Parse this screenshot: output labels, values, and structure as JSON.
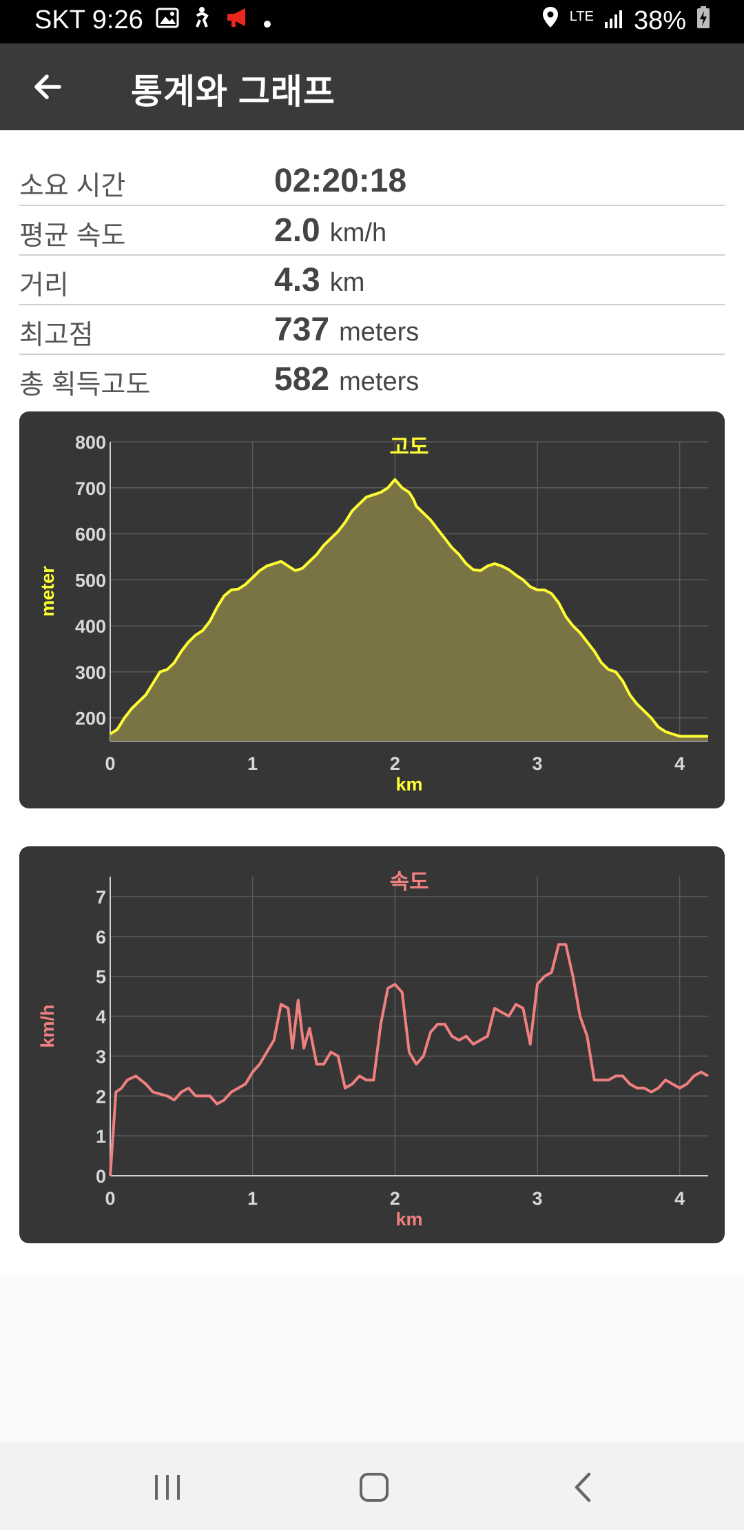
{
  "status_bar": {
    "carrier_time": "SKT 9:26",
    "network": "LTE",
    "battery": "38%"
  },
  "app_bar": {
    "title": "통계와 그래프"
  },
  "stats": [
    {
      "label": "소요 시간",
      "value": "02:20:18",
      "unit": ""
    },
    {
      "label": "평균 속도",
      "value": "2.0",
      "unit": "km/h"
    },
    {
      "label": "거리",
      "value": "4.3",
      "unit": "km"
    },
    {
      "label": "최고점",
      "value": "737",
      "unit": "meters"
    },
    {
      "label": "총 획득고도",
      "value": "582",
      "unit": "meters"
    }
  ],
  "colors": {
    "elevation_line": "#ffff33",
    "elevation_fill": "#7a7444",
    "speed_line": "#f08080",
    "panel_bg": "#363636"
  },
  "chart_data": [
    {
      "type": "area",
      "title": "고도",
      "xlabel": "km",
      "ylabel": "meter",
      "xlim": [
        0,
        4.2
      ],
      "ylim": [
        150,
        800
      ],
      "x_ticks": [
        0,
        1,
        2,
        3,
        4
      ],
      "y_ticks": [
        200,
        300,
        400,
        500,
        600,
        700,
        800
      ],
      "grid": true,
      "x": [
        0,
        0.05,
        0.1,
        0.15,
        0.2,
        0.25,
        0.3,
        0.35,
        0.4,
        0.45,
        0.5,
        0.55,
        0.6,
        0.65,
        0.7,
        0.75,
        0.8,
        0.85,
        0.9,
        0.95,
        1.0,
        1.05,
        1.1,
        1.15,
        1.2,
        1.25,
        1.3,
        1.35,
        1.4,
        1.45,
        1.5,
        1.55,
        1.6,
        1.65,
        1.7,
        1.75,
        1.8,
        1.85,
        1.9,
        1.95,
        2.0,
        2.05,
        2.1,
        2.13,
        2.15,
        2.2,
        2.25,
        2.3,
        2.35,
        2.4,
        2.45,
        2.5,
        2.55,
        2.6,
        2.65,
        2.7,
        2.75,
        2.8,
        2.85,
        2.9,
        2.95,
        3.0,
        3.05,
        3.1,
        3.15,
        3.2,
        3.25,
        3.3,
        3.35,
        3.4,
        3.45,
        3.5,
        3.55,
        3.6,
        3.65,
        3.7,
        3.75,
        3.8,
        3.85,
        3.9,
        3.95,
        4.0,
        4.05,
        4.1,
        4.15,
        4.2
      ],
      "values": [
        165,
        175,
        200,
        220,
        235,
        250,
        275,
        300,
        305,
        320,
        345,
        365,
        380,
        390,
        410,
        440,
        465,
        478,
        480,
        490,
        505,
        520,
        530,
        535,
        540,
        530,
        520,
        525,
        540,
        555,
        575,
        590,
        605,
        625,
        650,
        665,
        680,
        685,
        690,
        700,
        718,
        700,
        690,
        675,
        660,
        645,
        630,
        610,
        590,
        570,
        555,
        535,
        522,
        520,
        530,
        535,
        530,
        522,
        510,
        500,
        485,
        478,
        478,
        470,
        450,
        420,
        400,
        385,
        365,
        345,
        320,
        305,
        300,
        280,
        250,
        230,
        215,
        200,
        180,
        170,
        165,
        160,
        160,
        160,
        160,
        160
      ]
    },
    {
      "type": "line",
      "title": "속도",
      "xlabel": "km",
      "ylabel": "km/h",
      "xlim": [
        0,
        4.2
      ],
      "ylim": [
        0,
        7.5
      ],
      "x_ticks": [
        0,
        1,
        2,
        3,
        4
      ],
      "y_ticks": [
        0,
        1,
        2,
        3,
        4,
        5,
        6,
        7
      ],
      "grid": true,
      "x": [
        0,
        0.04,
        0.08,
        0.12,
        0.18,
        0.25,
        0.3,
        0.4,
        0.45,
        0.5,
        0.55,
        0.6,
        0.65,
        0.7,
        0.75,
        0.8,
        0.85,
        0.9,
        0.95,
        1.0,
        1.05,
        1.1,
        1.15,
        1.2,
        1.25,
        1.28,
        1.32,
        1.36,
        1.4,
        1.45,
        1.5,
        1.55,
        1.6,
        1.65,
        1.7,
        1.75,
        1.8,
        1.85,
        1.9,
        1.95,
        2.0,
        2.05,
        2.1,
        2.15,
        2.2,
        2.25,
        2.3,
        2.35,
        2.4,
        2.45,
        2.5,
        2.55,
        2.6,
        2.65,
        2.7,
        2.75,
        2.8,
        2.85,
        2.9,
        2.95,
        3.0,
        3.05,
        3.1,
        3.15,
        3.2,
        3.25,
        3.3,
        3.35,
        3.4,
        3.45,
        3.5,
        3.55,
        3.6,
        3.65,
        3.7,
        3.75,
        3.8,
        3.85,
        3.9,
        3.95,
        4.0,
        4.05,
        4.1,
        4.15,
        4.2
      ],
      "values": [
        0,
        2.1,
        2.2,
        2.4,
        2.5,
        2.3,
        2.1,
        2.0,
        1.9,
        2.1,
        2.2,
        2.0,
        2.0,
        2.0,
        1.8,
        1.9,
        2.1,
        2.2,
        2.3,
        2.6,
        2.8,
        3.1,
        3.4,
        4.3,
        4.2,
        3.2,
        4.4,
        3.2,
        3.7,
        2.8,
        2.8,
        3.1,
        3.0,
        2.2,
        2.3,
        2.5,
        2.4,
        2.4,
        3.8,
        4.7,
        4.8,
        4.6,
        3.1,
        2.8,
        3.0,
        3.6,
        3.8,
        3.8,
        3.5,
        3.4,
        3.5,
        3.3,
        3.4,
        3.5,
        4.2,
        4.1,
        4.0,
        4.3,
        4.2,
        3.3,
        4.8,
        5.0,
        5.1,
        5.8,
        5.8,
        5.0,
        4.0,
        3.5,
        2.4,
        2.4,
        2.4,
        2.5,
        2.5,
        2.3,
        2.2,
        2.2,
        2.1,
        2.2,
        2.4,
        2.3,
        2.2,
        2.3,
        2.5,
        2.6,
        2.5
      ]
    }
  ]
}
